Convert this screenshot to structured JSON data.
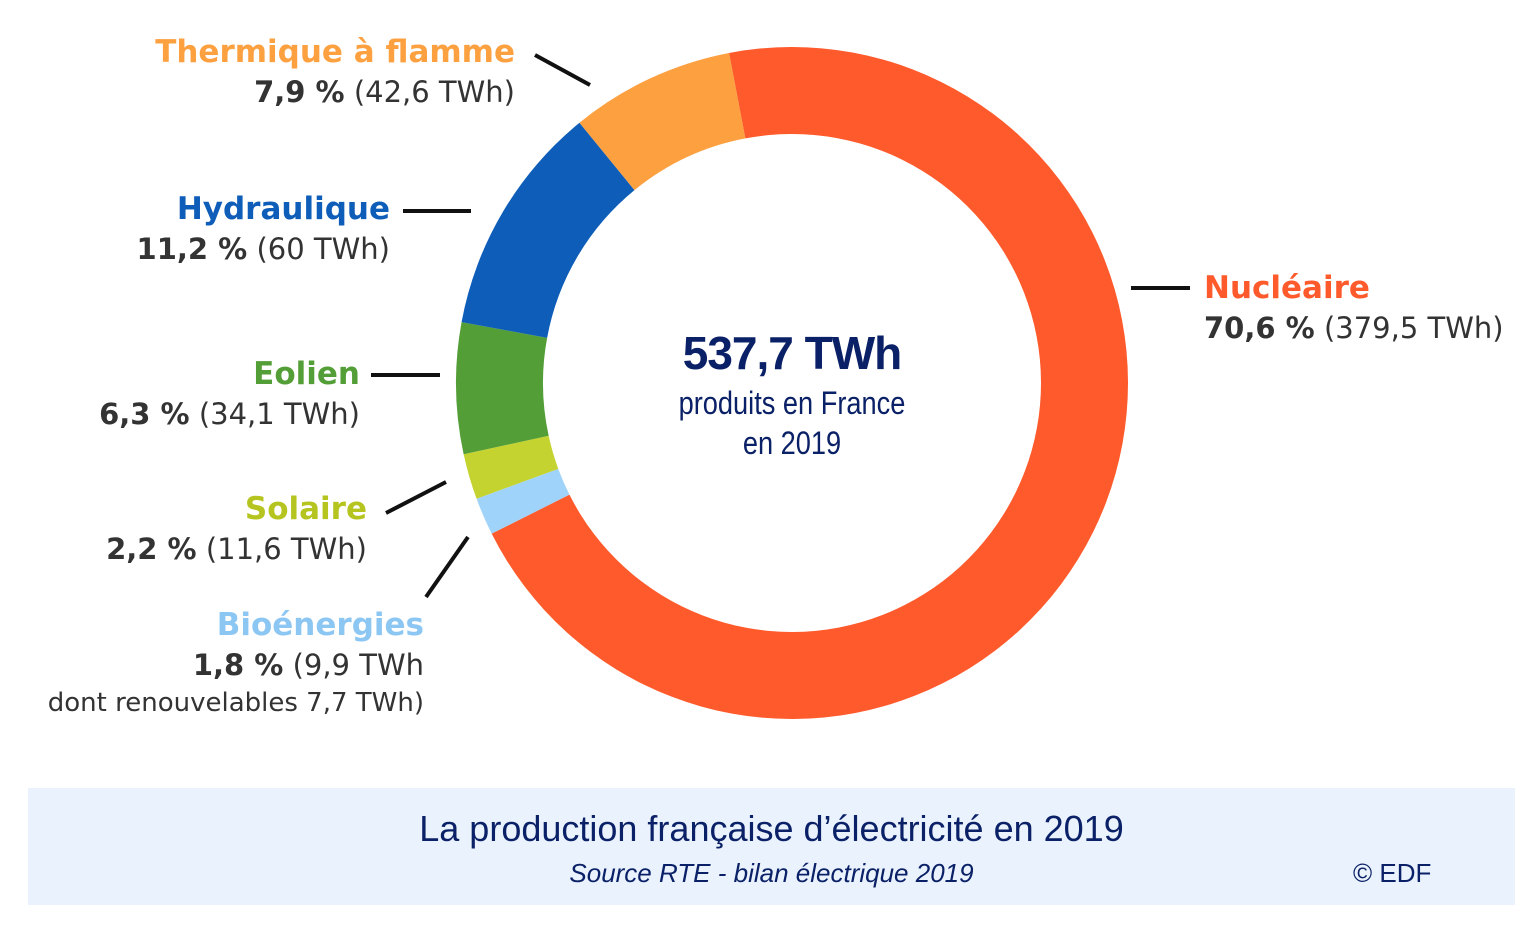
{
  "chart_data": {
    "type": "pie",
    "variant": "donut",
    "title": "La production française d’électricité en 2019",
    "subtitle": "Source RTE - bilan électrique 2019",
    "copyright": "© EDF",
    "center": {
      "total": "537,7 TWh",
      "line1": "produits en France",
      "line2": "en 2019"
    },
    "start_angle_deg": -10.8,
    "slices": [
      {
        "name": "Nucléaire",
        "percent": 70.6,
        "percent_label": "70,6 %",
        "twh_label": "(379,5 TWh)",
        "color": "#ff5a2b"
      },
      {
        "name": "Bioénergies",
        "percent": 1.8,
        "percent_label": "1,8 %",
        "twh_label": "(9,9 TWh",
        "extra": "dont renouvelables 7,7 TWh)",
        "color": "#9fd3fa"
      },
      {
        "name": "Solaire",
        "percent": 2.2,
        "percent_label": "2,2 %",
        "twh_label": "(11,6 TWh)",
        "color": "#c5d330"
      },
      {
        "name": "Eolien",
        "percent": 6.3,
        "percent_label": "6,3 %",
        "twh_label": "(34,1 TWh)",
        "color": "#539e36"
      },
      {
        "name": "Hydraulique",
        "percent": 11.2,
        "percent_label": "11,2 %",
        "twh_label": "(60 TWh)",
        "color": "#0e5db8"
      },
      {
        "name": "Thermique à flamme",
        "percent": 7.9,
        "percent_label": "7,9 %",
        "twh_label": "(42,6 TWh)",
        "color": "#fca040"
      }
    ]
  }
}
